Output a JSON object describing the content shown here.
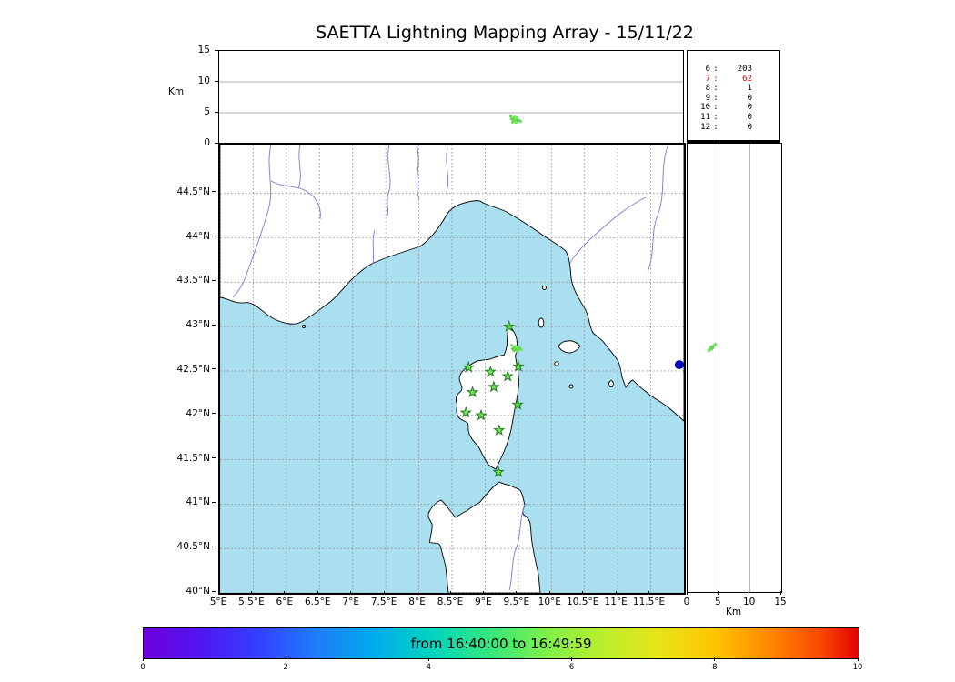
{
  "title": "SAETTA Lightning Mapping Array - 15/11/22",
  "top_panel": {
    "ylabel": "Km",
    "ylim": [
      0,
      15
    ],
    "gridlines": [
      5,
      10
    ],
    "ticks": [
      {
        "v": 0,
        "label": "0"
      },
      {
        "v": 5,
        "label": "5"
      },
      {
        "v": 10,
        "label": "10"
      },
      {
        "v": 15,
        "label": "15"
      }
    ]
  },
  "right_panel": {
    "xlabel": "Km",
    "xlim": [
      0,
      15
    ],
    "gridlines": [
      5,
      10
    ],
    "ticks": [
      {
        "v": 0,
        "label": "0"
      },
      {
        "v": 5,
        "label": "5"
      },
      {
        "v": 10,
        "label": "10"
      },
      {
        "v": 15,
        "label": "15"
      }
    ]
  },
  "map": {
    "extent": {
      "lon_min": 5,
      "lon_max": 12,
      "lat_min": 40,
      "lat_max": 45.05
    },
    "lon_ticks": [
      {
        "v": 5,
        "label": "5°E"
      },
      {
        "v": 5.5,
        "label": "5.5°E"
      },
      {
        "v": 6,
        "label": "6°E"
      },
      {
        "v": 6.5,
        "label": "6.5°E"
      },
      {
        "v": 7,
        "label": "7°E"
      },
      {
        "v": 7.5,
        "label": "7.5°E"
      },
      {
        "v": 8,
        "label": "8°E"
      },
      {
        "v": 8.5,
        "label": "8.5°E"
      },
      {
        "v": 9,
        "label": "9°E"
      },
      {
        "v": 9.5,
        "label": "9.5°E"
      },
      {
        "v": 10,
        "label": "10°E"
      },
      {
        "v": 10.5,
        "label": "10.5°E"
      },
      {
        "v": 11,
        "label": "11°E"
      },
      {
        "v": 11.5,
        "label": "11.5°E"
      }
    ],
    "lat_ticks": [
      {
        "v": 44.5,
        "label": "44.5°N"
      },
      {
        "v": 44,
        "label": "44°N"
      },
      {
        "v": 43.5,
        "label": "43.5°N"
      },
      {
        "v": 43,
        "label": "43°N"
      },
      {
        "v": 42.5,
        "label": "42.5°N"
      },
      {
        "v": 42,
        "label": "42°N"
      },
      {
        "v": 41.5,
        "label": "41.5°N"
      },
      {
        "v": 41,
        "label": "41°N"
      },
      {
        "v": 40.5,
        "label": "40.5°N"
      },
      {
        "v": 40,
        "label": "40°N"
      }
    ],
    "colors": {
      "sea": "#aadff0",
      "land": "#ffffff",
      "river": "#7a7ad8",
      "grid": "#888888",
      "coast": "#000000"
    }
  },
  "station_stats": {
    "rows": [
      {
        "label": "6",
        "value": "203",
        "color": "#000000"
      },
      {
        "label": "7",
        "value": "62",
        "color": "#dd0000"
      },
      {
        "label": "8",
        "value": "1",
        "color": "#000000"
      },
      {
        "label": "9",
        "value": "0",
        "color": "#000000"
      },
      {
        "label": "10",
        "value": "0",
        "color": "#000000"
      },
      {
        "label": "11",
        "value": "0",
        "color": "#000000"
      },
      {
        "label": "12",
        "value": "0",
        "color": "#000000"
      }
    ]
  },
  "colorbar": {
    "label": "from 16:40:00 to 16:49:59",
    "range": [
      0,
      10
    ],
    "ticks": [
      {
        "v": 0,
        "label": "0"
      },
      {
        "v": 2,
        "label": "2"
      },
      {
        "v": 4,
        "label": "4"
      },
      {
        "v": 6,
        "label": "6"
      },
      {
        "v": 8,
        "label": "8"
      },
      {
        "v": 10,
        "label": "10"
      }
    ],
    "gradient": [
      [
        0,
        "#6e00dc"
      ],
      [
        8,
        "#5015f2"
      ],
      [
        16,
        "#3340ff"
      ],
      [
        24,
        "#1e7cf8"
      ],
      [
        32,
        "#00aaee"
      ],
      [
        40,
        "#00d4c0"
      ],
      [
        48,
        "#33e680"
      ],
      [
        56,
        "#7bf04a"
      ],
      [
        64,
        "#b8ee2e"
      ],
      [
        72,
        "#e8e418"
      ],
      [
        80,
        "#ffc400"
      ],
      [
        88,
        "#ff8400"
      ],
      [
        95,
        "#f84400"
      ],
      [
        100,
        "#e40000"
      ]
    ]
  },
  "chart_data": {
    "type": "scatter",
    "title": "SAETTA Lightning Mapping Array - 15/11/22",
    "time_window": {
      "from": "16:40:00",
      "to": "16:49:59"
    },
    "panels": {
      "plan_view": {
        "x": "longitude_deg_E",
        "y": "latitude_deg_N",
        "x_range": [
          5,
          12
        ],
        "y_range": [
          40,
          45.05
        ]
      },
      "alt_vs_lon": {
        "y": "altitude_km",
        "y_range": [
          0,
          15
        ],
        "gridlines_km": [
          5,
          10
        ]
      },
      "alt_vs_lat": {
        "x": "altitude_km",
        "x_range": [
          0,
          15
        ],
        "gridlines_km": [
          5,
          10
        ]
      }
    },
    "station_source_counts": [
      [
        "6",
        203
      ],
      [
        "7",
        62
      ],
      [
        "8",
        1
      ],
      [
        "9",
        0
      ],
      [
        "10",
        0
      ],
      [
        "11",
        0
      ],
      [
        "12",
        0
      ]
    ],
    "station_marker": {
      "shape": "star",
      "fill": "#77e75c",
      "edge": "#1c7a1c"
    },
    "stations_lonlat": [
      [
        9.36,
        43.0
      ],
      [
        8.75,
        42.54
      ],
      [
        9.08,
        42.49
      ],
      [
        9.34,
        42.44
      ],
      [
        9.5,
        42.55
      ],
      [
        8.81,
        42.26
      ],
      [
        9.13,
        42.32
      ],
      [
        8.71,
        42.03
      ],
      [
        8.94,
        42.0
      ],
      [
        9.49,
        42.12
      ],
      [
        9.21,
        41.83
      ],
      [
        9.2,
        41.36
      ]
    ],
    "flash_sources": [
      {
        "lon": 9.4,
        "lat": 42.79,
        "alt_km": 4.45,
        "color": "#72e060"
      },
      {
        "lon": 9.44,
        "lat": 42.77,
        "alt_km": 4.15,
        "color": "#64d84e"
      },
      {
        "lon": 9.47,
        "lat": 42.75,
        "alt_km": 3.9,
        "color": "#7ce468"
      },
      {
        "lon": 9.5,
        "lat": 42.74,
        "alt_km": 3.7,
        "color": "#58d042"
      },
      {
        "lon": 9.43,
        "lat": 42.73,
        "alt_km": 3.5,
        "color": "#6ada55"
      },
      {
        "lon": 9.46,
        "lat": 42.78,
        "alt_km": 4.3,
        "color": "#80e870"
      },
      {
        "lon": 9.52,
        "lat": 42.76,
        "alt_km": 3.8,
        "color": "#5cd44a"
      },
      {
        "lon": 9.48,
        "lat": 42.72,
        "alt_km": 3.45,
        "color": "#70e05c"
      },
      {
        "lon": 9.41,
        "lat": 42.75,
        "alt_km": 4.0,
        "color": "#66d850"
      },
      {
        "lon": 9.55,
        "lat": 42.74,
        "alt_km": 3.6,
        "color": "#78e264"
      },
      {
        "lon": 9.45,
        "lat": 42.74,
        "alt_km": 3.85,
        "color": "#60d64c"
      },
      {
        "lon": 9.49,
        "lat": 42.77,
        "alt_km": 4.2,
        "color": "#74e25e"
      }
    ],
    "blue_marker": {
      "lon": 11.93,
      "lat": 42.57,
      "color": "#0000bb"
    }
  }
}
